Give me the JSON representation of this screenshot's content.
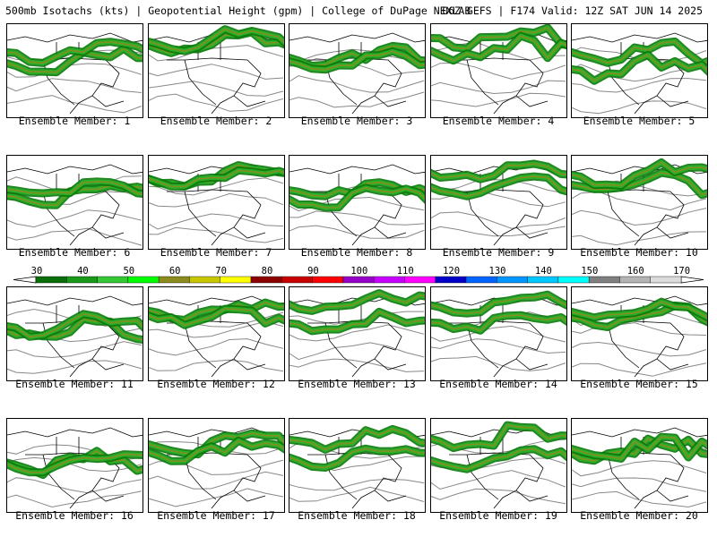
{
  "header": {
    "left": "500mb Isotachs (kts) | Geopotential Height (gpm) | College of DuPage NEXLAB",
    "right": "06Z GEFS | F174 Valid: 12Z SAT JUN 14 2025"
  },
  "members": [
    "Ensemble Member: 1",
    "Ensemble Member: 2",
    "Ensemble Member: 3",
    "Ensemble Member: 4",
    "Ensemble Member: 5",
    "Ensemble Member: 6",
    "Ensemble Member: 7",
    "Ensemble Member: 8",
    "Ensemble Member: 9",
    "Ensemble Member: 10",
    "Ensemble Member: 11",
    "Ensemble Member: 12",
    "Ensemble Member: 13",
    "Ensemble Member: 14",
    "Ensemble Member: 15",
    "Ensemble Member: 16",
    "Ensemble Member: 17",
    "Ensemble Member: 18",
    "Ensemble Member: 19",
    "Ensemble Member: 20"
  ],
  "colorbar": {
    "labels": [
      "30",
      "40",
      "50",
      "60",
      "70",
      "80",
      "90",
      "100",
      "110",
      "120",
      "130",
      "140",
      "150",
      "160",
      "170"
    ],
    "colors": [
      "#0a6e0a",
      "#1a9a1a",
      "#34c834",
      "#00ff00",
      "#8c8c1e",
      "#c8c800",
      "#ffff00",
      "#8c0000",
      "#c80000",
      "#ff0000",
      "#9600c8",
      "#c800ff",
      "#ff00ff",
      "#0000c8",
      "#0064ff",
      "#0096ff",
      "#00c8ff",
      "#00ffff",
      "#808080",
      "#b4b4b4",
      "#dcdcdc"
    ]
  },
  "map_colors": {
    "jet_dark": "#0a7a0a",
    "jet_mid": "#2db52d",
    "jet_core": "#8c8c1e",
    "height_contour": "#888888",
    "coastline": "#000000"
  }
}
